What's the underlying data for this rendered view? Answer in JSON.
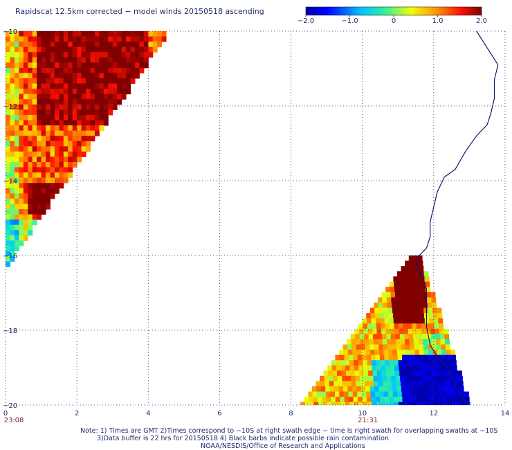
{
  "title": "Rapidscat 12.5km corrected − model winds 20150518 ascending",
  "colorbar": {
    "min": -2.0,
    "max": 2.0,
    "tick_labels": [
      "−2.0",
      "−1.0",
      "0",
      "1.0",
      "2.0"
    ],
    "tick_values": [
      -2,
      -1,
      0,
      1,
      2
    ]
  },
  "chart_data": {
    "type": "heatmap",
    "xlim": [
      0,
      14
    ],
    "ylim": [
      -20,
      -10
    ],
    "x_ticks": [
      0,
      2,
      4,
      6,
      8,
      10,
      12,
      14
    ],
    "x_tick_labels": [
      "0",
      "2",
      "4",
      "6",
      "8",
      "10",
      "12",
      "14"
    ],
    "y_ticks": [
      -10,
      -12,
      -14,
      -16,
      -18,
      -20
    ],
    "y_tick_labels": [
      "−10",
      "−12",
      "−14",
      "−16",
      "−18",
      "−20"
    ],
    "grid": true,
    "time_labels": [
      {
        "x": 0,
        "text": "23:08"
      },
      {
        "x": 10,
        "text": "21:31"
      }
    ],
    "swaths": [
      {
        "region": "west-swath",
        "x_range": [
          0,
          4.5
        ],
        "y_range": [
          -16,
          -10
        ],
        "values_summary": "mostly 0.5 to 2.0, highest (2.0+) near x 1-4, y -10.5 to -12; lower (0 to -1) near x 0-0.5, y -15 to -16"
      },
      {
        "region": "east-swath",
        "x_range": [
          8,
          13
        ],
        "y_range": [
          -20,
          -16
        ],
        "values_summary": "2.0+ near x 11-11.5, y -16 to -17.5; mostly 0 to 1.0 near x 8.5-11; -1.0 to -2.0 near x 11-13, y -18.5 to -20"
      }
    ]
  },
  "notes": [
    "Note: 1) Times are GMT 2)Times correspond to −10S at right swath edge − time is right swath for overlapping swaths at −10S",
    "3)Data buffer is 22 hrs for 20150518 4) Black barbs indicate possible rain contamination",
    "NOAA/NESDIS/Office of Research and Applications"
  ]
}
